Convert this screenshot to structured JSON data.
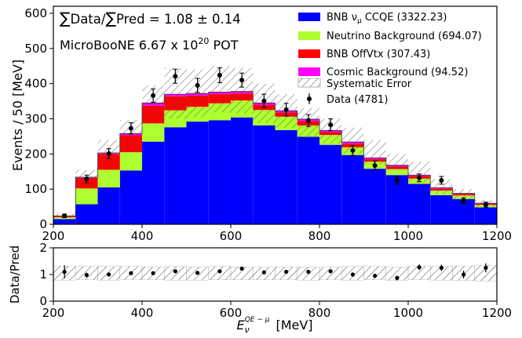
{
  "chart_data": {
    "type": "bar",
    "stacked": true,
    "xlim": [
      200,
      1200
    ],
    "bin_edges": [
      200,
      250,
      300,
      350,
      400,
      450,
      500,
      550,
      600,
      650,
      700,
      750,
      800,
      850,
      900,
      950,
      1000,
      1050,
      1100,
      1150,
      1200
    ],
    "xlabel_main": "E",
    "xlabel_sub": "ν",
    "xlabel_sup": "QE − μ",
    "xlabel_unit": "[MeV]",
    "x_ticks": [
      "200",
      "400",
      "600",
      "800",
      "1000",
      "1200"
    ],
    "top_panel": {
      "ylabel": "Events  / 50 [MeV]",
      "ylim": [
        0,
        620
      ],
      "y_ticks": [
        "0",
        "100",
        "200",
        "300",
        "400",
        "500",
        "600"
      ],
      "annotation_sum_data": "Data/",
      "annotation_sum_pred": "Pred = 1.08 ± 0.14",
      "annotation_pot_text": "MicroBooNE 6.67 x 10",
      "annotation_pot_exp": "20",
      "annotation_pot_unit": " POT",
      "series": [
        {
          "name": "BNB ν",
          "name_sub": "μ",
          "name_tail": " CCQE (3322.23)",
          "color": "#0000ff",
          "values": [
            15,
            57,
            105,
            153,
            235,
            276,
            292,
            296,
            304,
            281,
            268,
            249,
            226,
            197,
            158,
            140,
            115,
            83,
            72,
            48
          ]
        },
        {
          "name": "Neutrino Background (694.07)",
          "color": "#adff2f",
          "values": [
            5,
            45,
            50,
            52,
            52,
            48,
            42,
            48,
            48,
            44,
            38,
            32,
            28,
            22,
            20,
            17,
            15,
            13,
            10,
            7
          ]
        },
        {
          "name": "BNB OffVtx (307.43)",
          "color": "#ff0000",
          "values": [
            3,
            30,
            45,
            48,
            50,
            40,
            32,
            26,
            20,
            14,
            12,
            12,
            8,
            10,
            7,
            7,
            7,
            5,
            4,
            3
          ]
        },
        {
          "name": "Cosmic Background (94.52)",
          "color": "#ff00ff",
          "values": [
            1,
            2,
            3,
            5,
            8,
            6,
            6,
            6,
            6,
            6,
            5,
            6,
            5,
            5,
            4,
            4,
            3,
            3,
            2,
            2
          ]
        }
      ],
      "systematic": {
        "name": "Systematic Error",
        "low": [
          18,
          108,
          160,
          205,
          285,
          300,
          305,
          318,
          315,
          288,
          275,
          250,
          230,
          200,
          170,
          155,
          120,
          86,
          68,
          45
        ],
        "high": [
          32,
          155,
          240,
          297,
          395,
          445,
          440,
          450,
          445,
          400,
          370,
          330,
          300,
          275,
          240,
          200,
          178,
          128,
          100,
          70
        ]
      },
      "data": {
        "name": "Data (4781)",
        "x": [
          225,
          275,
          325,
          375,
          425,
          475,
          525,
          575,
          625,
          675,
          725,
          775,
          825,
          875,
          925,
          975,
          1025,
          1075,
          1125,
          1175
        ],
        "y": [
          24,
          129,
          201,
          273,
          366,
          421,
          395,
          424,
          410,
          351,
          326,
          295,
          283,
          210,
          167,
          125,
          132,
          125,
          67,
          56
        ],
        "err": [
          5,
          11,
          14,
          16,
          19,
          20,
          20,
          21,
          20,
          19,
          18,
          17,
          17,
          14,
          13,
          11,
          11,
          11,
          8,
          7
        ]
      }
    },
    "ratio_panel": {
      "ylabel": "Data/Pred",
      "ylim": [
        0,
        2
      ],
      "y_ticks": [
        "0",
        "1",
        "2"
      ],
      "band_low": [
        0.78,
        0.8,
        0.79,
        0.8,
        0.8,
        0.79,
        0.78,
        0.8,
        0.8,
        0.8,
        0.8,
        0.79,
        0.8,
        0.78,
        0.8,
        0.78,
        0.8,
        0.79,
        0.77,
        0.76
      ],
      "band_high": [
        1.32,
        1.3,
        1.3,
        1.3,
        1.28,
        1.3,
        1.28,
        1.3,
        1.28,
        1.27,
        1.28,
        1.28,
        1.27,
        1.3,
        1.3,
        1.27,
        1.3,
        1.3,
        1.32,
        1.35
      ],
      "values": [
        1.1,
        0.98,
        1.0,
        1.05,
        1.05,
        1.12,
        1.06,
        1.12,
        1.22,
        1.08,
        1.1,
        1.1,
        1.12,
        1.0,
        0.95,
        0.87,
        1.27,
        1.25,
        1.0,
        1.25
      ],
      "err": [
        0.25,
        0.09,
        0.07,
        0.07,
        0.06,
        0.05,
        0.05,
        0.05,
        0.06,
        0.06,
        0.06,
        0.07,
        0.07,
        0.07,
        0.08,
        0.09,
        0.11,
        0.12,
        0.15,
        0.17
      ]
    },
    "grid": false,
    "legend_position": "top-right"
  }
}
